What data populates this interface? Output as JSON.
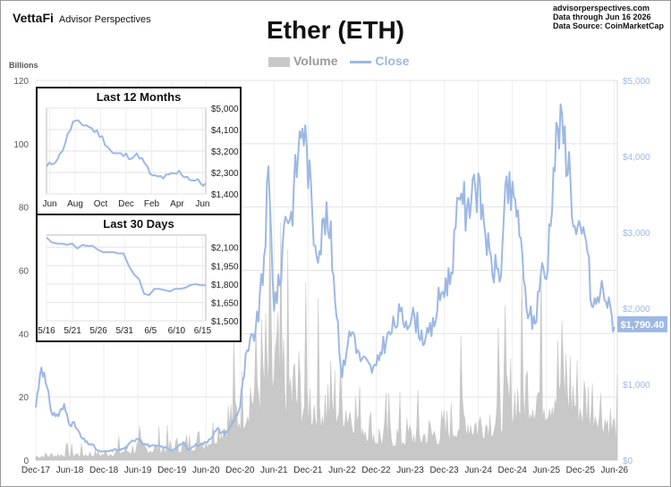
{
  "header": {
    "brand": "VettaFi",
    "brand_sub": "Advisor Perspectives",
    "site": "advisorperspectives.com",
    "data_through": "Data through  Jun 16 2026",
    "data_source": "Data Source: CoinMarketCap"
  },
  "chart_data": [
    {
      "type": "line",
      "title": "Ether (ETH)",
      "legend": [
        "Volume",
        "Close"
      ],
      "legend_position": "top-center",
      "left_axis_unit": "Billions",
      "x_tick_labels": [
        "Dec-17",
        "Jun-18",
        "Dec-18",
        "Jun-19",
        "Dec-19",
        "Jun-20",
        "Dec-20",
        "Jun-21",
        "Dec-21",
        "Jun-22",
        "Dec-22",
        "Jun-23",
        "Dec-23",
        "Jun-24",
        "Dec-24",
        "Jun-25",
        "Dec-25",
        "Jun-26"
      ],
      "y_left_ticks": [
        "0",
        "20",
        "40",
        "60",
        "80",
        "100",
        "120"
      ],
      "y_right_ticks": [
        "$0",
        "$1,000",
        "$2,000",
        "$3,000",
        "$4,000",
        "$5,000"
      ],
      "ylim_left": [
        0,
        120
      ],
      "ylim_right": [
        0,
        5000
      ],
      "grid": true,
      "last_close_label": "$1,790.40",
      "series": [
        {
          "name": "Close",
          "axis": "right",
          "x": [
            "2017-12",
            "2018-01",
            "2018-02",
            "2018-03",
            "2018-04",
            "2018-05",
            "2018-06",
            "2018-07",
            "2018-08",
            "2018-09",
            "2018-10",
            "2018-11",
            "2018-12",
            "2019-01",
            "2019-02",
            "2019-03",
            "2019-04",
            "2019-05",
            "2019-06",
            "2019-07",
            "2019-08",
            "2019-09",
            "2019-10",
            "2019-11",
            "2019-12",
            "2020-01",
            "2020-02",
            "2020-03",
            "2020-04",
            "2020-05",
            "2020-06",
            "2020-07",
            "2020-08",
            "2020-09",
            "2020-10",
            "2020-11",
            "2020-12",
            "2021-01",
            "2021-02",
            "2021-03",
            "2021-04",
            "2021-05",
            "2021-06",
            "2021-07",
            "2021-08",
            "2021-09",
            "2021-10",
            "2021-11",
            "2021-12",
            "2022-01",
            "2022-02",
            "2022-03",
            "2022-04",
            "2022-05",
            "2022-06",
            "2022-07",
            "2022-08",
            "2022-09",
            "2022-10",
            "2022-11",
            "2022-12",
            "2023-01",
            "2023-02",
            "2023-03",
            "2023-04",
            "2023-05",
            "2023-06",
            "2023-07",
            "2023-08",
            "2023-09",
            "2023-10",
            "2023-11",
            "2023-12",
            "2024-01",
            "2024-02",
            "2024-03",
            "2024-04",
            "2024-05",
            "2024-06",
            "2024-07",
            "2024-08",
            "2024-09",
            "2024-10",
            "2024-11",
            "2024-12",
            "2025-01",
            "2025-02",
            "2025-03",
            "2025-04",
            "2025-05",
            "2025-06",
            "2025-07",
            "2025-08",
            "2025-09",
            "2025-10",
            "2025-11",
            "2025-12",
            "2026-01",
            "2026-02",
            "2026-03",
            "2026-04",
            "2026-05",
            "2026-06"
          ],
          "values": [
            700,
            1300,
            900,
            600,
            600,
            700,
            500,
            450,
            300,
            230,
            200,
            120,
            110,
            120,
            140,
            140,
            170,
            250,
            300,
            220,
            190,
            180,
            180,
            160,
            130,
            170,
            230,
            130,
            200,
            210,
            230,
            320,
            400,
            360,
            390,
            550,
            700,
            1300,
            1550,
            1800,
            2400,
            3700,
            2100,
            2300,
            3300,
            3200,
            3900,
            4500,
            3900,
            3000,
            2800,
            3200,
            2900,
            2000,
            1100,
            1600,
            1700,
            1350,
            1300,
            1200,
            1200,
            1500,
            1600,
            1750,
            1900,
            1850,
            1900,
            1850,
            1650,
            1600,
            1750,
            2100,
            2300,
            2400,
            3000,
            3700,
            3100,
            3800,
            3500,
            3200,
            2600,
            2500,
            2500,
            3600,
            3400,
            3300,
            2300,
            1900,
            1800,
            2500,
            2400,
            3600,
            4400,
            4300,
            3900,
            3000,
            2900,
            3000,
            2000,
            2100,
            2300,
            2000,
            1790
          ]
        },
        {
          "name": "Volume",
          "axis": "left",
          "x": [
            "2017-12",
            "2018-06",
            "2018-12",
            "2019-06",
            "2019-12",
            "2020-06",
            "2020-12",
            "2021-03",
            "2021-06",
            "2021-09",
            "2021-12",
            "2022-03",
            "2022-06",
            "2022-09",
            "2022-12",
            "2023-06",
            "2023-12",
            "2024-03",
            "2024-06",
            "2024-09",
            "2024-12",
            "2025-03",
            "2025-06",
            "2025-09",
            "2025-12",
            "2026-03",
            "2026-06"
          ],
          "values": [
            2,
            3,
            3,
            6,
            6,
            10,
            25,
            40,
            45,
            35,
            30,
            28,
            30,
            22,
            12,
            12,
            14,
            22,
            18,
            22,
            30,
            36,
            35,
            42,
            28,
            28,
            15
          ]
        }
      ]
    },
    {
      "type": "line",
      "title": "Last 12 Months",
      "x_tick_labels": [
        "Jun",
        "Aug",
        "Oct",
        "Dec",
        "Feb",
        "Apr",
        "Jun"
      ],
      "y_tick_labels": [
        "$1,400",
        "$2,300",
        "$3,200",
        "$4,100",
        "$5,000"
      ],
      "ylim": [
        1400,
        5000
      ],
      "grid": true,
      "x": [
        "2025-06",
        "2025-07",
        "2025-08",
        "2025-09",
        "2025-10",
        "2025-11",
        "2025-12",
        "2026-01",
        "2026-02",
        "2026-03",
        "2026-04",
        "2026-05",
        "2026-06"
      ],
      "values": [
        2500,
        3000,
        4400,
        4300,
        3900,
        3100,
        3000,
        3000,
        2100,
        2100,
        2300,
        2000,
        1790
      ]
    },
    {
      "type": "line",
      "title": "Last 30 Days",
      "x_tick_labels": [
        "5/16",
        "5/21",
        "5/26",
        "5/31",
        "6/5",
        "6/10",
        "6/15"
      ],
      "y_tick_labels": [
        "$1,500",
        "$1,650",
        "$1,800",
        "$1,950",
        "$2,100"
      ],
      "ylim": [
        1500,
        2200
      ],
      "grid": true,
      "x": [
        "5/16",
        "5/17",
        "5/18",
        "5/19",
        "5/20",
        "5/21",
        "5/22",
        "5/23",
        "5/24",
        "5/25",
        "5/26",
        "5/27",
        "5/28",
        "5/29",
        "5/30",
        "5/31",
        "6/1",
        "6/2",
        "6/3",
        "6/4",
        "6/5",
        "6/6",
        "6/7",
        "6/8",
        "6/9",
        "6/10",
        "6/11",
        "6/12",
        "6/13",
        "6/14",
        "6/15",
        "6/16"
      ],
      "values": [
        2180,
        2140,
        2130,
        2130,
        2120,
        2130,
        2090,
        2120,
        2110,
        2110,
        2080,
        2060,
        2060,
        2060,
        2050,
        2050,
        1950,
        1880,
        1840,
        1720,
        1710,
        1760,
        1760,
        1750,
        1740,
        1760,
        1760,
        1770,
        1790,
        1800,
        1790,
        1790
      ]
    }
  ]
}
